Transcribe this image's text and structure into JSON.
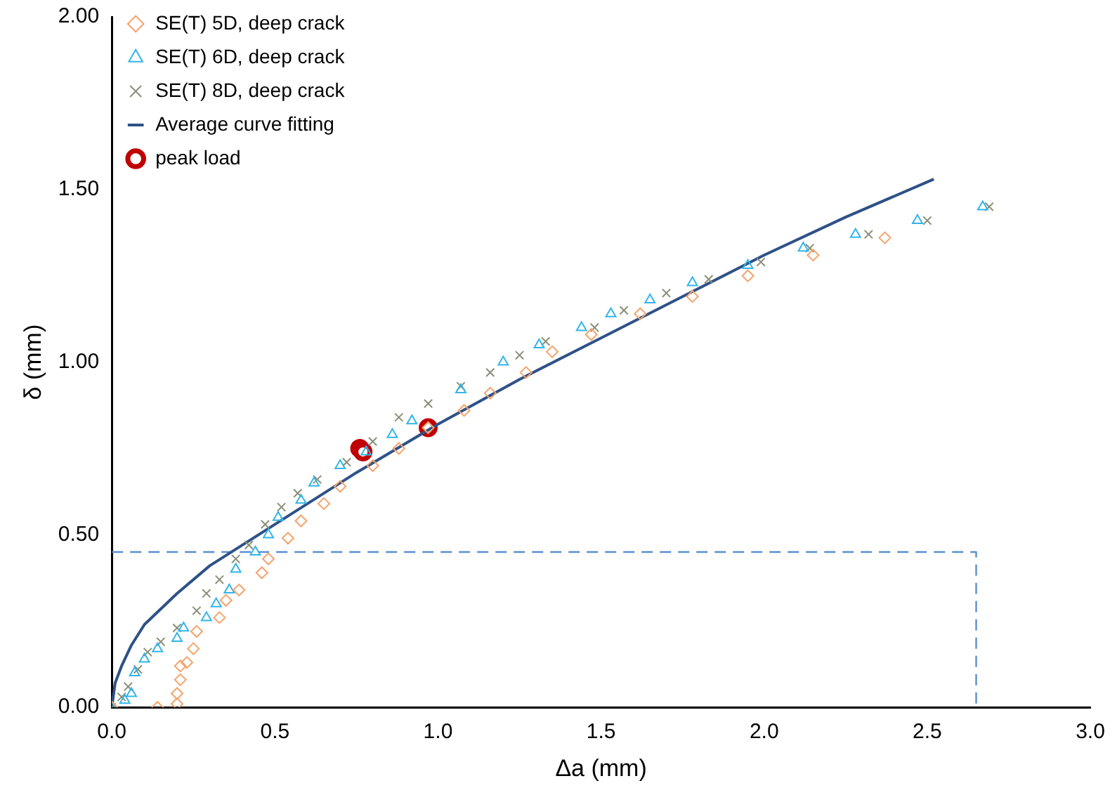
{
  "chart_data": {
    "type": "scatter",
    "xlabel": "Δa (mm)",
    "ylabel": "δ (mm)",
    "xlim": [
      0,
      3
    ],
    "ylim": [
      0,
      2
    ],
    "xticks": [
      {
        "value": 0,
        "label": "0.0"
      },
      {
        "value": 0.5,
        "label": "0.5"
      },
      {
        "value": 1,
        "label": "1.0"
      },
      {
        "value": 1.5,
        "label": "1.5"
      },
      {
        "value": 2,
        "label": "2.0"
      },
      {
        "value": 2.5,
        "label": "2.5"
      },
      {
        "value": 3,
        "label": "3.0"
      }
    ],
    "yticks": [
      {
        "value": 0,
        "label": "0.00"
      },
      {
        "value": 0.5,
        "label": "0.50"
      },
      {
        "value": 1,
        "label": "1.00"
      },
      {
        "value": 1.5,
        "label": "1.50"
      },
      {
        "value": 2,
        "label": "2.00"
      }
    ],
    "grid": false,
    "legend": "top left",
    "series": [
      {
        "name": "SE(T) 5D, deep crack",
        "marker": "diamond",
        "color": "#f4a46c",
        "x": [
          0,
          0.14,
          0.2,
          0.2,
          0.21,
          0.21,
          0.23,
          0.25,
          0.26,
          0.33,
          0.35,
          0.39,
          0.46,
          0.48,
          0.54,
          0.58,
          0.65,
          0.7,
          0.8,
          0.88,
          0.97,
          1.08,
          1.16,
          1.27,
          1.35,
          1.47,
          1.62,
          1.78,
          1.95,
          2.15,
          2.37
        ],
        "values": [
          0,
          0,
          0.01,
          0.04,
          0.08,
          0.12,
          0.13,
          0.17,
          0.22,
          0.26,
          0.31,
          0.34,
          0.39,
          0.43,
          0.49,
          0.54,
          0.59,
          0.64,
          0.7,
          0.75,
          0.81,
          0.86,
          0.91,
          0.97,
          1.03,
          1.08,
          1.14,
          1.19,
          1.25,
          1.31,
          1.36
        ]
      },
      {
        "name": "SE(T) 6D, deep crack",
        "marker": "triangle",
        "color": "#33b5e8",
        "x": [
          0,
          0.04,
          0.06,
          0.07,
          0.1,
          0.14,
          0.2,
          0.22,
          0.29,
          0.32,
          0.36,
          0.38,
          0.44,
          0.48,
          0.51,
          0.58,
          0.62,
          0.7,
          0.78,
          0.86,
          0.92,
          1.07,
          1.2,
          1.31,
          1.44,
          1.53,
          1.65,
          1.78,
          1.95,
          2.12,
          2.28,
          2.47,
          2.67
        ],
        "values": [
          0,
          0.02,
          0.04,
          0.1,
          0.14,
          0.17,
          0.2,
          0.23,
          0.26,
          0.3,
          0.34,
          0.4,
          0.45,
          0.5,
          0.55,
          0.6,
          0.65,
          0.7,
          0.74,
          0.79,
          0.83,
          0.92,
          1.0,
          1.05,
          1.1,
          1.14,
          1.18,
          1.23,
          1.28,
          1.33,
          1.37,
          1.41,
          1.45
        ]
      },
      {
        "name": "SE(T) 8D, deep crack",
        "marker": "cross",
        "color": "#8a8f78",
        "x": [
          0,
          0.03,
          0.05,
          0.08,
          0.11,
          0.15,
          0.2,
          0.26,
          0.29,
          0.33,
          0.38,
          0.42,
          0.47,
          0.52,
          0.57,
          0.63,
          0.72,
          0.8,
          0.88,
          0.97,
          1.07,
          1.16,
          1.25,
          1.33,
          1.48,
          1.57,
          1.7,
          1.83,
          1.99,
          2.14,
          2.32,
          2.5,
          2.69
        ],
        "values": [
          0,
          0.03,
          0.06,
          0.11,
          0.16,
          0.19,
          0.23,
          0.28,
          0.33,
          0.37,
          0.43,
          0.47,
          0.53,
          0.58,
          0.62,
          0.66,
          0.71,
          0.77,
          0.84,
          0.88,
          0.93,
          0.97,
          1.02,
          1.06,
          1.1,
          1.15,
          1.2,
          1.24,
          1.29,
          1.33,
          1.37,
          1.41,
          1.45
        ]
      },
      {
        "name": "Average curve fitting",
        "type": "line",
        "marker": "none",
        "line_style": "solid",
        "color": "#2e5287",
        "x": [
          0,
          0.01,
          0.03,
          0.06,
          0.1,
          0.2,
          0.3,
          0.4,
          0.5,
          0.75,
          1.0,
          1.25,
          1.5,
          1.75,
          2.0,
          2.25,
          2.52
        ],
        "values": [
          0,
          0.07,
          0.12,
          0.18,
          0.24,
          0.33,
          0.41,
          0.47,
          0.53,
          0.68,
          0.82,
          0.95,
          1.07,
          1.19,
          1.31,
          1.42,
          1.53
        ]
      },
      {
        "name": "peak load",
        "marker": "circle",
        "color": "#c00000",
        "x": [
          0.76,
          0.77,
          0.97
        ],
        "values": [
          0.75,
          0.74,
          0.81
        ]
      },
      {
        "type": "line",
        "marker": "none",
        "line_style": "dashed",
        "color": "#5b8fd0",
        "x": [
          0,
          2.65,
          2.65
        ],
        "values": [
          0.45,
          0.45,
          0
        ]
      }
    ]
  }
}
